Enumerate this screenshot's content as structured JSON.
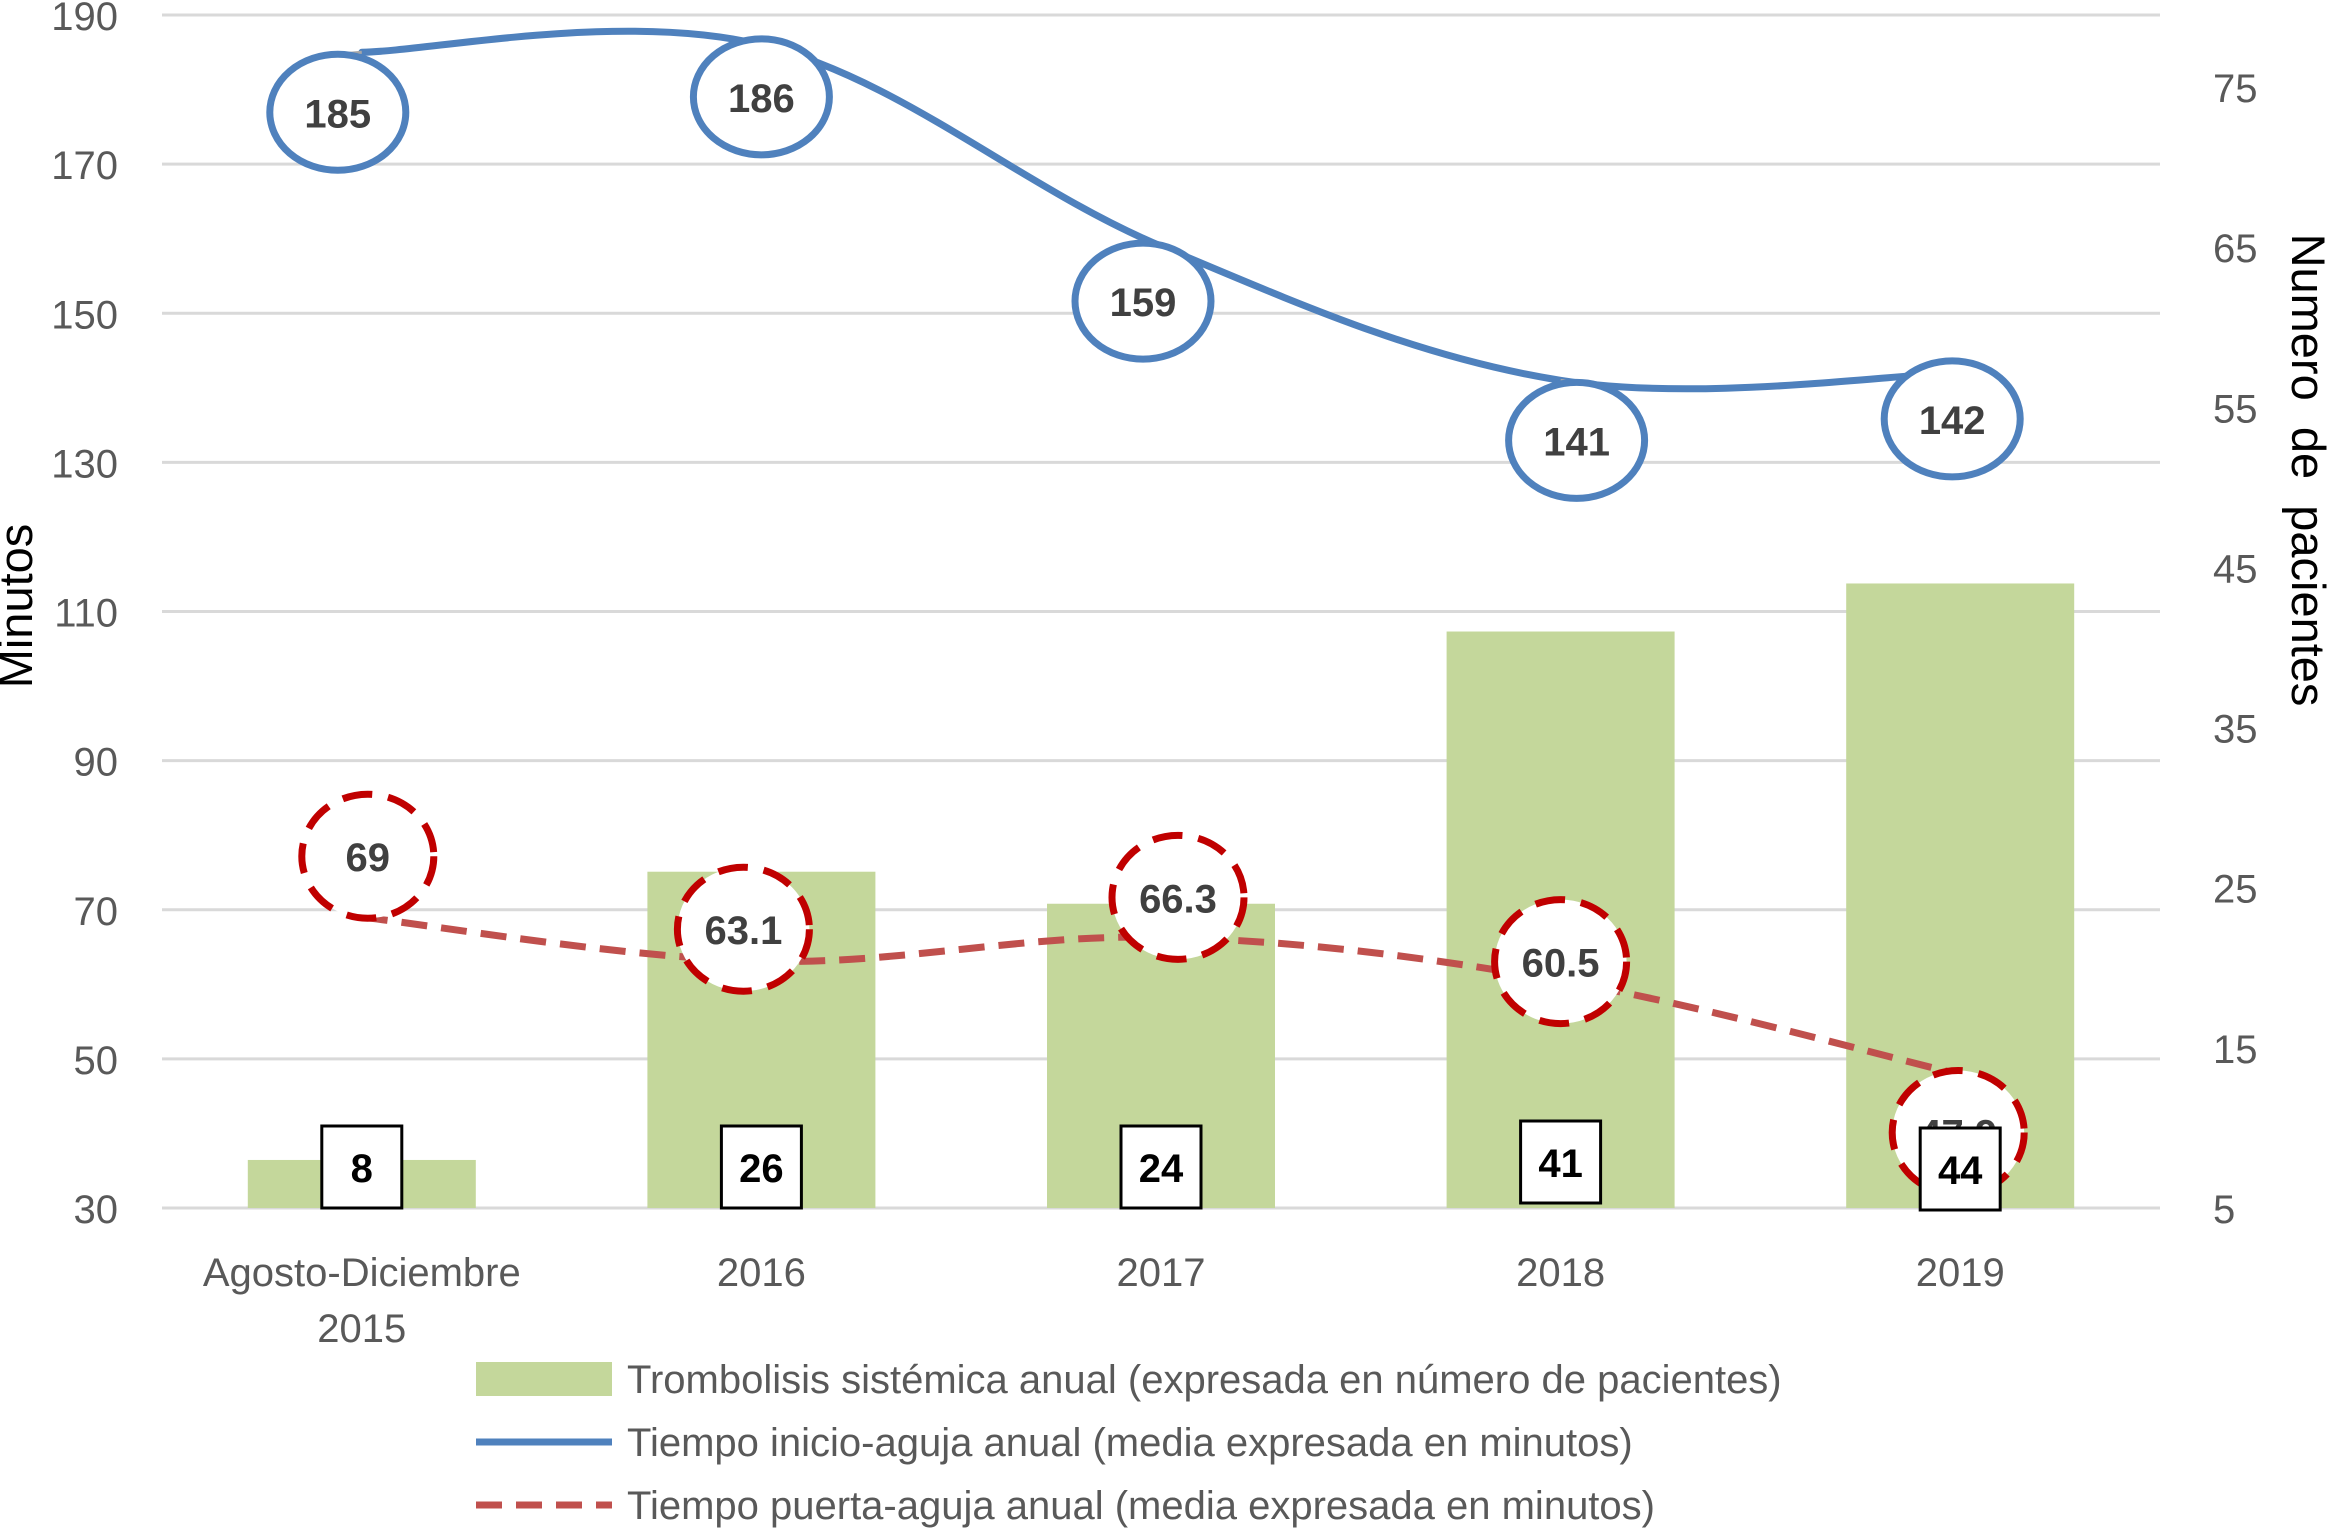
{
  "chart_data": {
    "type": "bar",
    "categories": [
      "Agosto-Diciembre 2015",
      "2016",
      "2017",
      "2018",
      "2019"
    ],
    "category_tick_labels": [
      [
        "Agosto-Diciembre",
        "2015"
      ],
      [
        "2016"
      ],
      [
        "2017"
      ],
      [
        "2018"
      ],
      [
        "2019"
      ]
    ],
    "y_left": {
      "label": "Minutos",
      "ticks": [
        30,
        50,
        70,
        90,
        110,
        130,
        150,
        170,
        190
      ],
      "ylim": [
        30,
        190
      ]
    },
    "y_right": {
      "label": "Numero  de  pacientes",
      "ticks": [
        5,
        15,
        25,
        35,
        45,
        55,
        65,
        75
      ],
      "ylim": [
        5,
        79.5
      ]
    },
    "grid": true,
    "legend_position": "bottom",
    "series": [
      {
        "name": "Trombolisis sistémica anual (expresada en número de pacientes)",
        "kind": "bar",
        "axis": "right",
        "values": [
          8,
          26,
          24,
          41,
          44
        ],
        "labels": [
          "8",
          "26",
          "24",
          "41",
          "44"
        ],
        "label_style": "boxed",
        "color": "#c4d79b"
      },
      {
        "name": "Tiempo inicio-aguja anual (media expresada en minutos)",
        "kind": "line",
        "axis": "left",
        "values": [
          185,
          186,
          159,
          141,
          142
        ],
        "labels": [
          "185",
          "186",
          "159",
          "141",
          "142"
        ],
        "label_style": "circled",
        "color": "#4f81bd"
      },
      {
        "name": "Tiempo puerta-aguja anual (media expresada en minutos)",
        "kind": "line",
        "dash": true,
        "axis": "left",
        "values": [
          69,
          63.1,
          66.3,
          60.5,
          47.9
        ],
        "labels": [
          "69",
          "63.1",
          "66.3",
          "60.5",
          "47.9"
        ],
        "label_style": "dashed-circle",
        "color": "#c0504d",
        "label_ring_color": "#c00000"
      }
    ]
  }
}
